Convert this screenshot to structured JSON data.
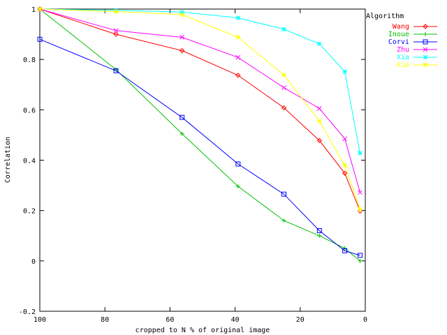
{
  "chart_data": {
    "type": "line",
    "title": "",
    "xlabel": "cropped to N % of original image",
    "ylabel": "Correlation",
    "xlim": [
      100,
      0
    ],
    "ylim": [
      -0.2,
      1
    ],
    "x_reversed": true,
    "xticks": [
      100,
      80,
      60,
      40,
      20,
      0
    ],
    "yticks": [
      -0.2,
      0,
      0.2,
      0.4,
      0.6,
      0.8,
      1
    ],
    "xtick_labels": [
      "100",
      "80",
      "60",
      "40",
      "20",
      "0"
    ],
    "ytick_labels": [
      "-0.2",
      "0",
      "0.2",
      "0.4",
      "0.6",
      "0.8",
      "1"
    ],
    "grid": false,
    "legend_title": "Algorithm",
    "legend_position": "top-right outside plot",
    "x": [
      100,
      76.6,
      56.3,
      39.1,
      25.0,
      14.1,
      6.3,
      1.6
    ],
    "series": [
      {
        "name": "Wang",
        "color": "#ff0000",
        "marker": "diamond",
        "values": [
          1.0,
          0.9,
          0.835,
          0.737,
          0.608,
          0.478,
          0.348,
          0.198
        ]
      },
      {
        "name": "Inoue",
        "color": "#00c000",
        "marker": "plus",
        "values": [
          1.0,
          0.76,
          0.505,
          0.296,
          0.16,
          0.1,
          0.05,
          0.0
        ]
      },
      {
        "name": "Corvi",
        "color": "#0000ff",
        "marker": "square",
        "values": [
          0.88,
          0.755,
          0.57,
          0.385,
          0.265,
          0.12,
          0.04,
          0.022
        ]
      },
      {
        "name": "Zhu",
        "color": "#ff00ff",
        "marker": "cross",
        "values": [
          1.0,
          0.915,
          0.888,
          0.808,
          0.688,
          0.605,
          0.485,
          0.272
        ]
      },
      {
        "name": "Xia",
        "color": "#00ffff",
        "marker": "star",
        "values": [
          1.0,
          0.995,
          0.988,
          0.965,
          0.92,
          0.862,
          0.752,
          0.428
        ]
      },
      {
        "name": "Kim",
        "color": "#ffff00",
        "marker": "star",
        "values": [
          1.0,
          0.99,
          0.978,
          0.888,
          0.738,
          0.555,
          0.38,
          0.205
        ]
      }
    ]
  }
}
